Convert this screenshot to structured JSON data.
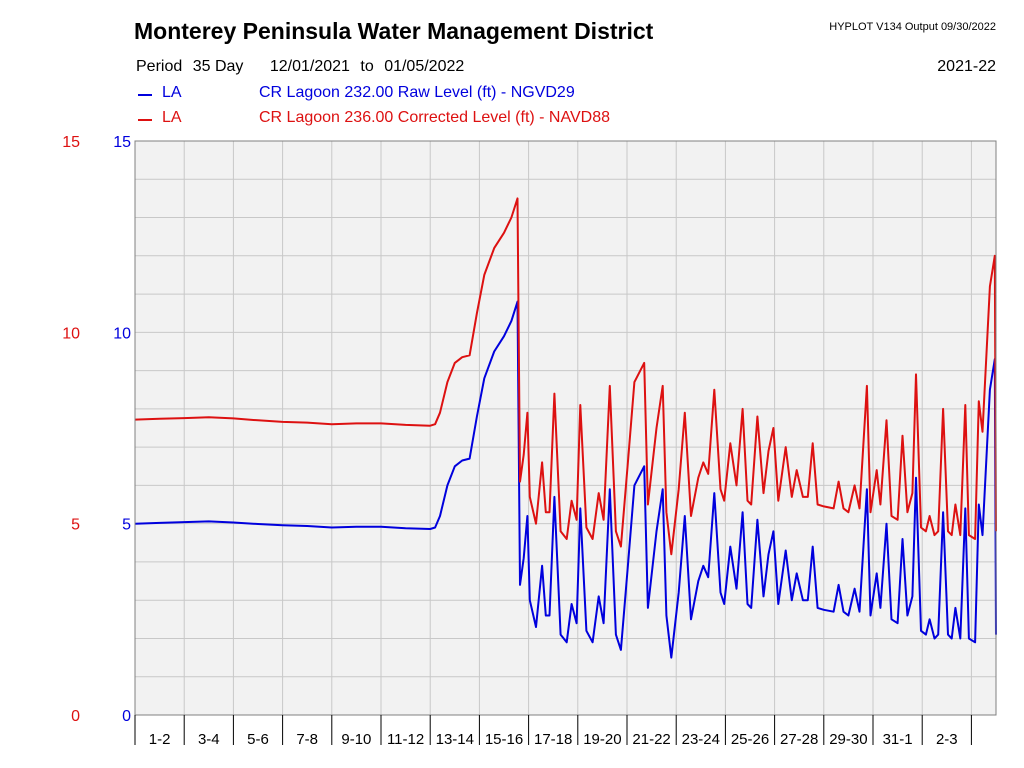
{
  "header": {
    "title": "Monterey Peninsula Water Management District",
    "program": "HYPLOT V134  Output 09/30/2022",
    "period_label": "Period",
    "period_length": "35 Day",
    "date_start": "12/01/2021",
    "date_to": "to",
    "date_end": "01/05/2022",
    "season": "2021-22"
  },
  "legend": [
    {
      "code": "LA",
      "description": "CR Lagoon  232.00 Raw Level (ft) - NGVD29",
      "color": "#0000dd"
    },
    {
      "code": "LA",
      "description": "CR Lagoon  236.00 Corrected Level (ft) - NAVD88",
      "color": "#dd1111"
    }
  ],
  "chart_data": {
    "type": "line",
    "x_unit": "day index (0 = 12/01/2021 00:00)",
    "xlim": [
      0,
      35
    ],
    "ylim": [
      0,
      15
    ],
    "yticks": [
      0,
      5,
      10,
      15
    ],
    "left_axis_color": "#dd1111",
    "right_axis_color": "#0000dd",
    "grid": true,
    "background": "#f2f2f2",
    "x_tick_labels": [
      "1-2",
      "3-4",
      "5-6",
      "7-8",
      "9-10",
      "11-12",
      "13-14",
      "15-16",
      "17-18",
      "19-20",
      "21-22",
      "23-24",
      "25-26",
      "27-28",
      "29-30",
      "31-1",
      "2-3"
    ],
    "series": [
      {
        "name": "CR Lagoon  232.00 Raw Level (ft) - NGVD29",
        "color": "#0000dd",
        "points": [
          [
            0,
            5.0
          ],
          [
            1,
            5.02
          ],
          [
            2,
            5.04
          ],
          [
            3,
            5.06
          ],
          [
            4,
            5.03
          ],
          [
            5,
            4.99
          ],
          [
            6,
            4.96
          ],
          [
            7,
            4.94
          ],
          [
            8,
            4.9
          ],
          [
            9,
            4.92
          ],
          [
            10,
            4.92
          ],
          [
            11,
            4.88
          ],
          [
            12,
            4.86
          ],
          [
            12.2,
            4.9
          ],
          [
            12.4,
            5.2
          ],
          [
            12.7,
            6.0
          ],
          [
            13.0,
            6.5
          ],
          [
            13.3,
            6.65
          ],
          [
            13.6,
            6.7
          ],
          [
            13.9,
            7.8
          ],
          [
            14.2,
            8.8
          ],
          [
            14.6,
            9.5
          ],
          [
            15.0,
            9.9
          ],
          [
            15.3,
            10.3
          ],
          [
            15.55,
            10.8
          ],
          [
            15.65,
            3.4
          ],
          [
            15.8,
            4.1
          ],
          [
            15.95,
            5.2
          ],
          [
            16.05,
            3.0
          ],
          [
            16.3,
            2.3
          ],
          [
            16.55,
            3.9
          ],
          [
            16.7,
            2.6
          ],
          [
            16.85,
            2.6
          ],
          [
            17.05,
            5.7
          ],
          [
            17.3,
            2.1
          ],
          [
            17.55,
            1.9
          ],
          [
            17.75,
            2.9
          ],
          [
            17.95,
            2.4
          ],
          [
            18.1,
            5.4
          ],
          [
            18.35,
            2.2
          ],
          [
            18.6,
            1.9
          ],
          [
            18.85,
            3.1
          ],
          [
            19.05,
            2.4
          ],
          [
            19.3,
            5.9
          ],
          [
            19.55,
            2.1
          ],
          [
            19.75,
            1.7
          ],
          [
            20.05,
            4.0
          ],
          [
            20.3,
            6.0
          ],
          [
            20.7,
            6.5
          ],
          [
            20.85,
            2.8
          ],
          [
            21.2,
            4.8
          ],
          [
            21.45,
            5.9
          ],
          [
            21.6,
            2.6
          ],
          [
            21.8,
            1.5
          ],
          [
            22.1,
            3.2
          ],
          [
            22.35,
            5.2
          ],
          [
            22.6,
            2.5
          ],
          [
            22.9,
            3.5
          ],
          [
            23.1,
            3.9
          ],
          [
            23.3,
            3.6
          ],
          [
            23.55,
            5.8
          ],
          [
            23.8,
            3.2
          ],
          [
            23.95,
            2.9
          ],
          [
            24.2,
            4.4
          ],
          [
            24.45,
            3.3
          ],
          [
            24.7,
            5.3
          ],
          [
            24.9,
            2.9
          ],
          [
            25.05,
            2.8
          ],
          [
            25.3,
            5.1
          ],
          [
            25.55,
            3.1
          ],
          [
            25.75,
            4.2
          ],
          [
            25.95,
            4.8
          ],
          [
            26.15,
            2.9
          ],
          [
            26.45,
            4.3
          ],
          [
            26.7,
            3.0
          ],
          [
            26.9,
            3.7
          ],
          [
            27.15,
            3.0
          ],
          [
            27.35,
            3.0
          ],
          [
            27.55,
            4.4
          ],
          [
            27.75,
            2.8
          ],
          [
            28.0,
            2.75
          ],
          [
            28.4,
            2.7
          ],
          [
            28.6,
            3.4
          ],
          [
            28.8,
            2.7
          ],
          [
            29.0,
            2.6
          ],
          [
            29.25,
            3.3
          ],
          [
            29.45,
            2.7
          ],
          [
            29.75,
            5.9
          ],
          [
            29.9,
            2.6
          ],
          [
            30.15,
            3.7
          ],
          [
            30.3,
            2.8
          ],
          [
            30.55,
            5.0
          ],
          [
            30.75,
            2.5
          ],
          [
            31.0,
            2.4
          ],
          [
            31.2,
            4.6
          ],
          [
            31.4,
            2.6
          ],
          [
            31.6,
            3.1
          ],
          [
            31.75,
            6.2
          ],
          [
            31.95,
            2.2
          ],
          [
            32.15,
            2.1
          ],
          [
            32.3,
            2.5
          ],
          [
            32.5,
            2.0
          ],
          [
            32.65,
            2.1
          ],
          [
            32.85,
            5.3
          ],
          [
            33.05,
            2.1
          ],
          [
            33.2,
            2.0
          ],
          [
            33.35,
            2.8
          ],
          [
            33.55,
            2.0
          ],
          [
            33.75,
            5.4
          ],
          [
            33.9,
            2.0
          ],
          [
            34.15,
            1.9
          ],
          [
            34.3,
            5.5
          ],
          [
            34.45,
            4.7
          ],
          [
            34.75,
            8.5
          ],
          [
            34.95,
            9.3
          ],
          [
            35.0,
            2.1
          ]
        ]
      },
      {
        "name": "CR Lagoon  236.00 Corrected Level (ft) - NAVD88",
        "color": "#dd1111",
        "points": [
          [
            0,
            7.72
          ],
          [
            1,
            7.74
          ],
          [
            2,
            7.76
          ],
          [
            3,
            7.78
          ],
          [
            4,
            7.75
          ],
          [
            5,
            7.7
          ],
          [
            6,
            7.66
          ],
          [
            7,
            7.64
          ],
          [
            8,
            7.6
          ],
          [
            9,
            7.62
          ],
          [
            10,
            7.62
          ],
          [
            11,
            7.58
          ],
          [
            12,
            7.56
          ],
          [
            12.2,
            7.6
          ],
          [
            12.4,
            7.9
          ],
          [
            12.7,
            8.7
          ],
          [
            13.0,
            9.2
          ],
          [
            13.3,
            9.35
          ],
          [
            13.6,
            9.4
          ],
          [
            13.9,
            10.5
          ],
          [
            14.2,
            11.5
          ],
          [
            14.6,
            12.2
          ],
          [
            15.0,
            12.6
          ],
          [
            15.3,
            13.0
          ],
          [
            15.55,
            13.5
          ],
          [
            15.65,
            6.1
          ],
          [
            15.8,
            6.8
          ],
          [
            15.95,
            7.9
          ],
          [
            16.05,
            5.7
          ],
          [
            16.3,
            5.0
          ],
          [
            16.55,
            6.6
          ],
          [
            16.7,
            5.3
          ],
          [
            16.85,
            5.3
          ],
          [
            17.05,
            8.4
          ],
          [
            17.3,
            4.8
          ],
          [
            17.55,
            4.6
          ],
          [
            17.75,
            5.6
          ],
          [
            17.95,
            5.1
          ],
          [
            18.1,
            8.1
          ],
          [
            18.35,
            4.9
          ],
          [
            18.6,
            4.6
          ],
          [
            18.85,
            5.8
          ],
          [
            19.05,
            5.1
          ],
          [
            19.3,
            8.6
          ],
          [
            19.55,
            4.8
          ],
          [
            19.75,
            4.4
          ],
          [
            20.05,
            6.7
          ],
          [
            20.3,
            8.7
          ],
          [
            20.7,
            9.2
          ],
          [
            20.85,
            5.5
          ],
          [
            21.2,
            7.5
          ],
          [
            21.45,
            8.6
          ],
          [
            21.6,
            5.3
          ],
          [
            21.8,
            4.2
          ],
          [
            22.1,
            5.9
          ],
          [
            22.35,
            7.9
          ],
          [
            22.6,
            5.2
          ],
          [
            22.9,
            6.2
          ],
          [
            23.1,
            6.6
          ],
          [
            23.3,
            6.3
          ],
          [
            23.55,
            8.5
          ],
          [
            23.8,
            5.9
          ],
          [
            23.95,
            5.6
          ],
          [
            24.2,
            7.1
          ],
          [
            24.45,
            6.0
          ],
          [
            24.7,
            8.0
          ],
          [
            24.9,
            5.6
          ],
          [
            25.05,
            5.5
          ],
          [
            25.3,
            7.8
          ],
          [
            25.55,
            5.8
          ],
          [
            25.75,
            6.9
          ],
          [
            25.95,
            7.5
          ],
          [
            26.15,
            5.6
          ],
          [
            26.45,
            7.0
          ],
          [
            26.7,
            5.7
          ],
          [
            26.9,
            6.4
          ],
          [
            27.15,
            5.7
          ],
          [
            27.35,
            5.7
          ],
          [
            27.55,
            7.1
          ],
          [
            27.75,
            5.5
          ],
          [
            28.0,
            5.45
          ],
          [
            28.4,
            5.4
          ],
          [
            28.6,
            6.1
          ],
          [
            28.8,
            5.4
          ],
          [
            29.0,
            5.3
          ],
          [
            29.25,
            6.0
          ],
          [
            29.45,
            5.4
          ],
          [
            29.75,
            8.6
          ],
          [
            29.9,
            5.3
          ],
          [
            30.15,
            6.4
          ],
          [
            30.3,
            5.5
          ],
          [
            30.55,
            7.7
          ],
          [
            30.75,
            5.2
          ],
          [
            31.0,
            5.1
          ],
          [
            31.2,
            7.3
          ],
          [
            31.4,
            5.3
          ],
          [
            31.6,
            5.8
          ],
          [
            31.75,
            8.9
          ],
          [
            31.95,
            4.9
          ],
          [
            32.15,
            4.8
          ],
          [
            32.3,
            5.2
          ],
          [
            32.5,
            4.7
          ],
          [
            32.65,
            4.8
          ],
          [
            32.85,
            8.0
          ],
          [
            33.05,
            4.8
          ],
          [
            33.2,
            4.7
          ],
          [
            33.35,
            5.5
          ],
          [
            33.55,
            4.7
          ],
          [
            33.75,
            8.1
          ],
          [
            33.9,
            4.7
          ],
          [
            34.15,
            4.6
          ],
          [
            34.3,
            8.2
          ],
          [
            34.45,
            7.4
          ],
          [
            34.75,
            11.2
          ],
          [
            34.95,
            12.0
          ],
          [
            35.0,
            4.8
          ]
        ]
      }
    ]
  }
}
